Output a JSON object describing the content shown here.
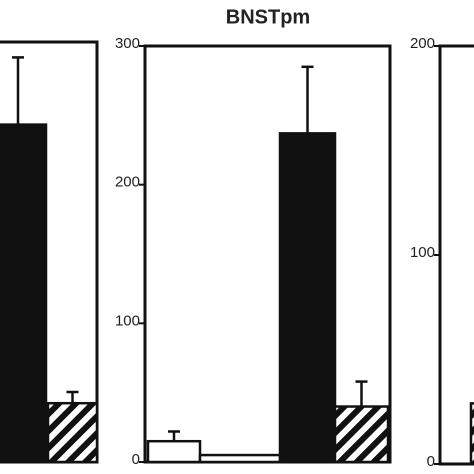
{
  "chart_data": [
    {
      "type": "bar",
      "values": [
        241,
        42
      ],
      "errors": [
        48,
        8
      ],
      "fills": [
        "black",
        "hatch"
      ],
      "ylim": [
        0,
        300
      ]
    },
    {
      "type": "bar",
      "title": "BNSTpm",
      "values": [
        15,
        5,
        237,
        40
      ],
      "errors": [
        7,
        0,
        48,
        18
      ],
      "fills": [
        "white",
        "white",
        "black",
        "hatch"
      ],
      "ylim": [
        0,
        300
      ],
      "yticks": [
        0,
        100,
        200,
        300
      ]
    },
    {
      "type": "bar",
      "values": [
        29
      ],
      "errors": [
        0
      ],
      "fills": [
        "hatch"
      ],
      "ylim": [
        0,
        200
      ],
      "yticks": [
        0,
        100,
        200
      ]
    }
  ]
}
